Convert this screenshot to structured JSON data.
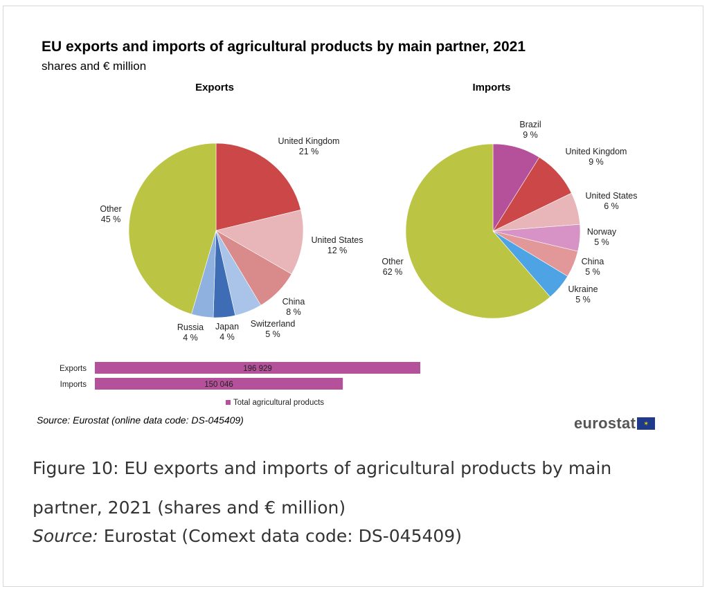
{
  "figure": {
    "title": "EU exports and imports of agricultural products by main partner, 2021",
    "subtitle": "shares and € million",
    "source_inner": "Source: Eurostat (online data code: DS-045409)",
    "logo_text": "eurostat",
    "logo_flag_icon": "eu-flag-icon",
    "caption": "Figure 10: EU exports and imports of agricultural products by main partner, 2021 (shares and € million)",
    "caption_source_label": "Source:",
    "caption_source_text": " Eurostat (Comext data code: DS-045409)"
  },
  "chart_data": [
    {
      "type": "pie",
      "title": "Exports",
      "unit": "%",
      "slices": [
        {
          "label": "United Kingdom",
          "value": 21,
          "value_label": "21 %",
          "color": "#cc4848"
        },
        {
          "label": "United States",
          "value": 12,
          "value_label": "12 %",
          "color": "#e8b5b8"
        },
        {
          "label": "China",
          "value": 8,
          "value_label": "8 %",
          "color": "#d98a8a"
        },
        {
          "label": "Switzerland",
          "value": 5,
          "value_label": "5 %",
          "color": "#a9c4e8"
        },
        {
          "label": "Japan",
          "value": 4,
          "value_label": "4 %",
          "color": "#3e6db5"
        },
        {
          "label": "Russia",
          "value": 4,
          "value_label": "4 %",
          "color": "#8fb1e0"
        },
        {
          "label": "Other",
          "value": 45,
          "value_label": "45 %",
          "color": "#bcc443"
        }
      ]
    },
    {
      "type": "pie",
      "title": "Imports",
      "unit": "%",
      "slices": [
        {
          "label": "Brazil",
          "value": 9,
          "value_label": "9 %",
          "color": "#b5519b"
        },
        {
          "label": "United Kingdom",
          "value": 9,
          "value_label": "9 %",
          "color": "#cc4848"
        },
        {
          "label": "United States",
          "value": 6,
          "value_label": "6 %",
          "color": "#e8b5b8"
        },
        {
          "label": "Norway",
          "value": 5,
          "value_label": "5 %",
          "color": "#d893c6"
        },
        {
          "label": "China",
          "value": 5,
          "value_label": "5 %",
          "color": "#e29898"
        },
        {
          "label": "Ukraine",
          "value": 5,
          "value_label": "5 %",
          "color": "#4da3e3"
        },
        {
          "label": "Other",
          "value": 62,
          "value_label": "62 %",
          "color": "#bcc443"
        }
      ]
    },
    {
      "type": "bar",
      "orientation": "horizontal",
      "unit": "€ million",
      "categories": [
        "Exports",
        "Imports"
      ],
      "values": [
        196929,
        150046
      ],
      "value_labels": [
        "196 929",
        "150 046"
      ],
      "series": [
        {
          "name": "Total agricultural products",
          "color": "#b5519b"
        }
      ],
      "legend": "bottom"
    }
  ]
}
